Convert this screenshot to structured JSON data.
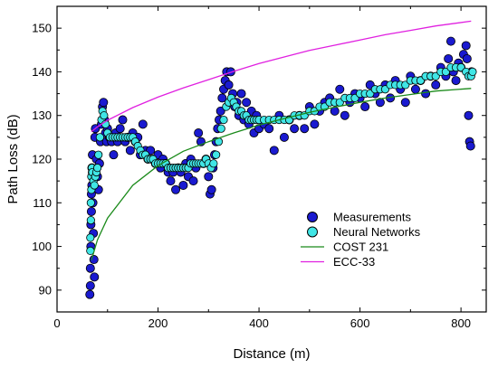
{
  "chart_data": {
    "type": "scatter",
    "title": "",
    "xlabel": "Distance (m)",
    "ylabel": "Path Loss (dB)",
    "xlim": [
      0,
      850
    ],
    "ylim": [
      85,
      155
    ],
    "xticks": [
      0,
      200,
      400,
      600,
      800
    ],
    "yticks": [
      90,
      100,
      110,
      120,
      130,
      140,
      150
    ],
    "grid": false,
    "legend_position": "center-right",
    "series": [
      {
        "name": "Measurements",
        "kind": "scatter",
        "color": "#1a1ad0",
        "edge": "#000000",
        "points": [
          [
            65,
            89
          ],
          [
            66,
            91
          ],
          [
            66,
            95
          ],
          [
            67,
            100
          ],
          [
            67,
            105
          ],
          [
            68,
            108
          ],
          [
            68,
            112
          ],
          [
            69,
            114
          ],
          [
            69,
            118
          ],
          [
            70,
            121
          ],
          [
            70,
            117
          ],
          [
            71,
            110
          ],
          [
            72,
            103
          ],
          [
            73,
            97
          ],
          [
            74,
            93
          ],
          [
            75,
            125
          ],
          [
            76,
            127
          ],
          [
            78,
            120
          ],
          [
            80,
            116
          ],
          [
            82,
            113
          ],
          [
            84,
            119
          ],
          [
            86,
            124
          ],
          [
            88,
            128
          ],
          [
            90,
            132
          ],
          [
            92,
            133
          ],
          [
            94,
            129
          ],
          [
            96,
            126
          ],
          [
            98,
            124
          ],
          [
            100,
            127
          ],
          [
            104,
            125
          ],
          [
            108,
            124
          ],
          [
            112,
            121
          ],
          [
            116,
            126
          ],
          [
            120,
            124
          ],
          [
            125,
            127
          ],
          [
            130,
            129
          ],
          [
            135,
            124
          ],
          [
            140,
            125
          ],
          [
            145,
            122
          ],
          [
            150,
            126
          ],
          [
            155,
            124
          ],
          [
            160,
            125
          ],
          [
            165,
            121
          ],
          [
            170,
            128
          ],
          [
            175,
            122
          ],
          [
            180,
            120
          ],
          [
            185,
            122
          ],
          [
            190,
            120
          ],
          [
            195,
            119
          ],
          [
            200,
            121
          ],
          [
            205,
            118
          ],
          [
            210,
            120
          ],
          [
            215,
            119
          ],
          [
            220,
            117
          ],
          [
            225,
            115
          ],
          [
            230,
            117
          ],
          [
            235,
            113
          ],
          [
            240,
            118
          ],
          [
            245,
            117
          ],
          [
            250,
            114
          ],
          [
            255,
            119
          ],
          [
            260,
            116
          ],
          [
            265,
            120
          ],
          [
            270,
            115
          ],
          [
            275,
            118
          ],
          [
            280,
            126
          ],
          [
            285,
            124
          ],
          [
            290,
            119
          ],
          [
            295,
            120
          ],
          [
            300,
            116
          ],
          [
            303,
            112
          ],
          [
            306,
            113
          ],
          [
            309,
            118
          ],
          [
            312,
            121
          ],
          [
            315,
            124
          ],
          [
            318,
            127
          ],
          [
            321,
            129
          ],
          [
            324,
            131
          ],
          [
            327,
            134
          ],
          [
            330,
            136
          ],
          [
            333,
            138
          ],
          [
            336,
            140
          ],
          [
            340,
            137
          ],
          [
            344,
            140
          ],
          [
            348,
            135
          ],
          [
            352,
            132
          ],
          [
            356,
            133
          ],
          [
            360,
            130
          ],
          [
            365,
            135
          ],
          [
            370,
            129
          ],
          [
            375,
            133
          ],
          [
            380,
            128
          ],
          [
            385,
            131
          ],
          [
            390,
            126
          ],
          [
            395,
            130
          ],
          [
            400,
            127
          ],
          [
            410,
            128
          ],
          [
            420,
            127
          ],
          [
            430,
            122
          ],
          [
            440,
            130
          ],
          [
            450,
            125
          ],
          [
            460,
            129
          ],
          [
            470,
            127
          ],
          [
            480,
            130
          ],
          [
            490,
            127
          ],
          [
            500,
            132
          ],
          [
            510,
            128
          ],
          [
            520,
            131
          ],
          [
            530,
            133
          ],
          [
            540,
            134
          ],
          [
            550,
            131
          ],
          [
            560,
            136
          ],
          [
            570,
            130
          ],
          [
            580,
            133
          ],
          [
            590,
            135
          ],
          [
            600,
            134
          ],
          [
            610,
            132
          ],
          [
            620,
            137
          ],
          [
            630,
            135
          ],
          [
            640,
            133
          ],
          [
            650,
            137
          ],
          [
            660,
            134
          ],
          [
            670,
            138
          ],
          [
            680,
            136
          ],
          [
            690,
            133
          ],
          [
            700,
            139
          ],
          [
            710,
            136
          ],
          [
            720,
            138
          ],
          [
            730,
            135
          ],
          [
            740,
            139
          ],
          [
            750,
            137
          ],
          [
            760,
            141
          ],
          [
            770,
            139
          ],
          [
            775,
            143
          ],
          [
            780,
            147
          ],
          [
            785,
            140
          ],
          [
            790,
            138
          ],
          [
            795,
            142
          ],
          [
            800,
            141
          ],
          [
            805,
            144
          ],
          [
            810,
            146
          ],
          [
            812,
            143
          ],
          [
            815,
            130
          ],
          [
            817,
            124
          ],
          [
            819,
            123
          ],
          [
            821,
            140
          ]
        ]
      },
      {
        "name": "Neural Networks",
        "kind": "scatter",
        "color": "#40e6e6",
        "edge": "#000000",
        "points": [
          [
            66,
            99
          ],
          [
            66,
            102
          ],
          [
            67,
            106
          ],
          [
            67,
            110
          ],
          [
            68,
            113
          ],
          [
            68,
            116
          ],
          [
            69,
            118
          ],
          [
            70,
            117
          ],
          [
            72,
            115
          ],
          [
            74,
            114
          ],
          [
            76,
            116
          ],
          [
            78,
            117
          ],
          [
            80,
            118
          ],
          [
            82,
            121
          ],
          [
            85,
            125
          ],
          [
            88,
            129
          ],
          [
            90,
            131
          ],
          [
            93,
            130
          ],
          [
            96,
            128
          ],
          [
            100,
            126
          ],
          [
            105,
            125
          ],
          [
            110,
            125
          ],
          [
            115,
            125
          ],
          [
            120,
            125
          ],
          [
            125,
            125
          ],
          [
            130,
            125
          ],
          [
            135,
            125
          ],
          [
            140,
            125
          ],
          [
            145,
            125
          ],
          [
            150,
            125
          ],
          [
            155,
            124
          ],
          [
            160,
            123
          ],
          [
            165,
            122
          ],
          [
            170,
            121
          ],
          [
            175,
            121
          ],
          [
            180,
            120
          ],
          [
            185,
            120
          ],
          [
            190,
            120
          ],
          [
            195,
            119
          ],
          [
            200,
            119
          ],
          [
            205,
            119
          ],
          [
            210,
            119
          ],
          [
            215,
            119
          ],
          [
            220,
            118
          ],
          [
            225,
            118
          ],
          [
            230,
            118
          ],
          [
            235,
            118
          ],
          [
            240,
            118
          ],
          [
            245,
            118
          ],
          [
            250,
            118
          ],
          [
            255,
            118
          ],
          [
            260,
            118
          ],
          [
            265,
            119
          ],
          [
            270,
            119
          ],
          [
            275,
            119
          ],
          [
            280,
            119
          ],
          [
            285,
            119
          ],
          [
            290,
            119
          ],
          [
            295,
            120
          ],
          [
            300,
            119
          ],
          [
            305,
            118
          ],
          [
            310,
            119
          ],
          [
            315,
            121
          ],
          [
            320,
            124
          ],
          [
            325,
            127
          ],
          [
            330,
            129
          ],
          [
            335,
            132
          ],
          [
            340,
            133
          ],
          [
            345,
            134
          ],
          [
            350,
            133
          ],
          [
            355,
            132
          ],
          [
            360,
            131
          ],
          [
            365,
            131
          ],
          [
            370,
            130
          ],
          [
            375,
            130
          ],
          [
            380,
            129
          ],
          [
            385,
            129
          ],
          [
            390,
            129
          ],
          [
            395,
            129
          ],
          [
            400,
            129
          ],
          [
            410,
            129
          ],
          [
            420,
            129
          ],
          [
            430,
            129
          ],
          [
            440,
            129
          ],
          [
            450,
            129
          ],
          [
            460,
            129
          ],
          [
            470,
            130
          ],
          [
            480,
            130
          ],
          [
            490,
            130
          ],
          [
            500,
            131
          ],
          [
            510,
            131
          ],
          [
            520,
            132
          ],
          [
            530,
            132
          ],
          [
            540,
            133
          ],
          [
            550,
            133
          ],
          [
            560,
            133
          ],
          [
            570,
            134
          ],
          [
            580,
            134
          ],
          [
            590,
            134
          ],
          [
            600,
            135
          ],
          [
            610,
            135
          ],
          [
            620,
            135
          ],
          [
            630,
            136
          ],
          [
            640,
            136
          ],
          [
            650,
            136
          ],
          [
            660,
            137
          ],
          [
            670,
            137
          ],
          [
            680,
            137
          ],
          [
            690,
            137
          ],
          [
            700,
            138
          ],
          [
            710,
            138
          ],
          [
            720,
            138
          ],
          [
            730,
            139
          ],
          [
            740,
            139
          ],
          [
            750,
            139
          ],
          [
            760,
            140
          ],
          [
            770,
            140
          ],
          [
            780,
            141
          ],
          [
            790,
            141
          ],
          [
            800,
            141
          ],
          [
            810,
            140
          ],
          [
            815,
            139
          ],
          [
            820,
            139
          ],
          [
            823,
            140
          ]
        ]
      },
      {
        "name": "COST 231",
        "kind": "line",
        "color": "#1a8a1a",
        "points": [
          [
            68,
            96.8
          ],
          [
            80,
            101.5
          ],
          [
            100,
            106.5
          ],
          [
            150,
            114
          ],
          [
            200,
            118.5
          ],
          [
            250,
            121.8
          ],
          [
            300,
            124
          ],
          [
            350,
            126
          ],
          [
            400,
            127.8
          ],
          [
            450,
            129.3
          ],
          [
            500,
            130.7
          ],
          [
            550,
            131.9
          ],
          [
            600,
            133
          ],
          [
            650,
            134
          ],
          [
            700,
            134.8
          ],
          [
            750,
            135.6
          ],
          [
            820,
            136.2
          ]
        ]
      },
      {
        "name": "ECC-33",
        "kind": "line",
        "color": "#e020e0",
        "points": [
          [
            68,
            126.3
          ],
          [
            80,
            127.4
          ],
          [
            100,
            128.9
          ],
          [
            150,
            131.8
          ],
          [
            200,
            134.2
          ],
          [
            250,
            136.3
          ],
          [
            300,
            138.2
          ],
          [
            350,
            140.1
          ],
          [
            400,
            141.9
          ],
          [
            450,
            143.4
          ],
          [
            500,
            144.9
          ],
          [
            550,
            146.1
          ],
          [
            600,
            147.3
          ],
          [
            650,
            148.5
          ],
          [
            700,
            149.5
          ],
          [
            750,
            150.5
          ],
          [
            820,
            151.6
          ]
        ]
      }
    ]
  }
}
